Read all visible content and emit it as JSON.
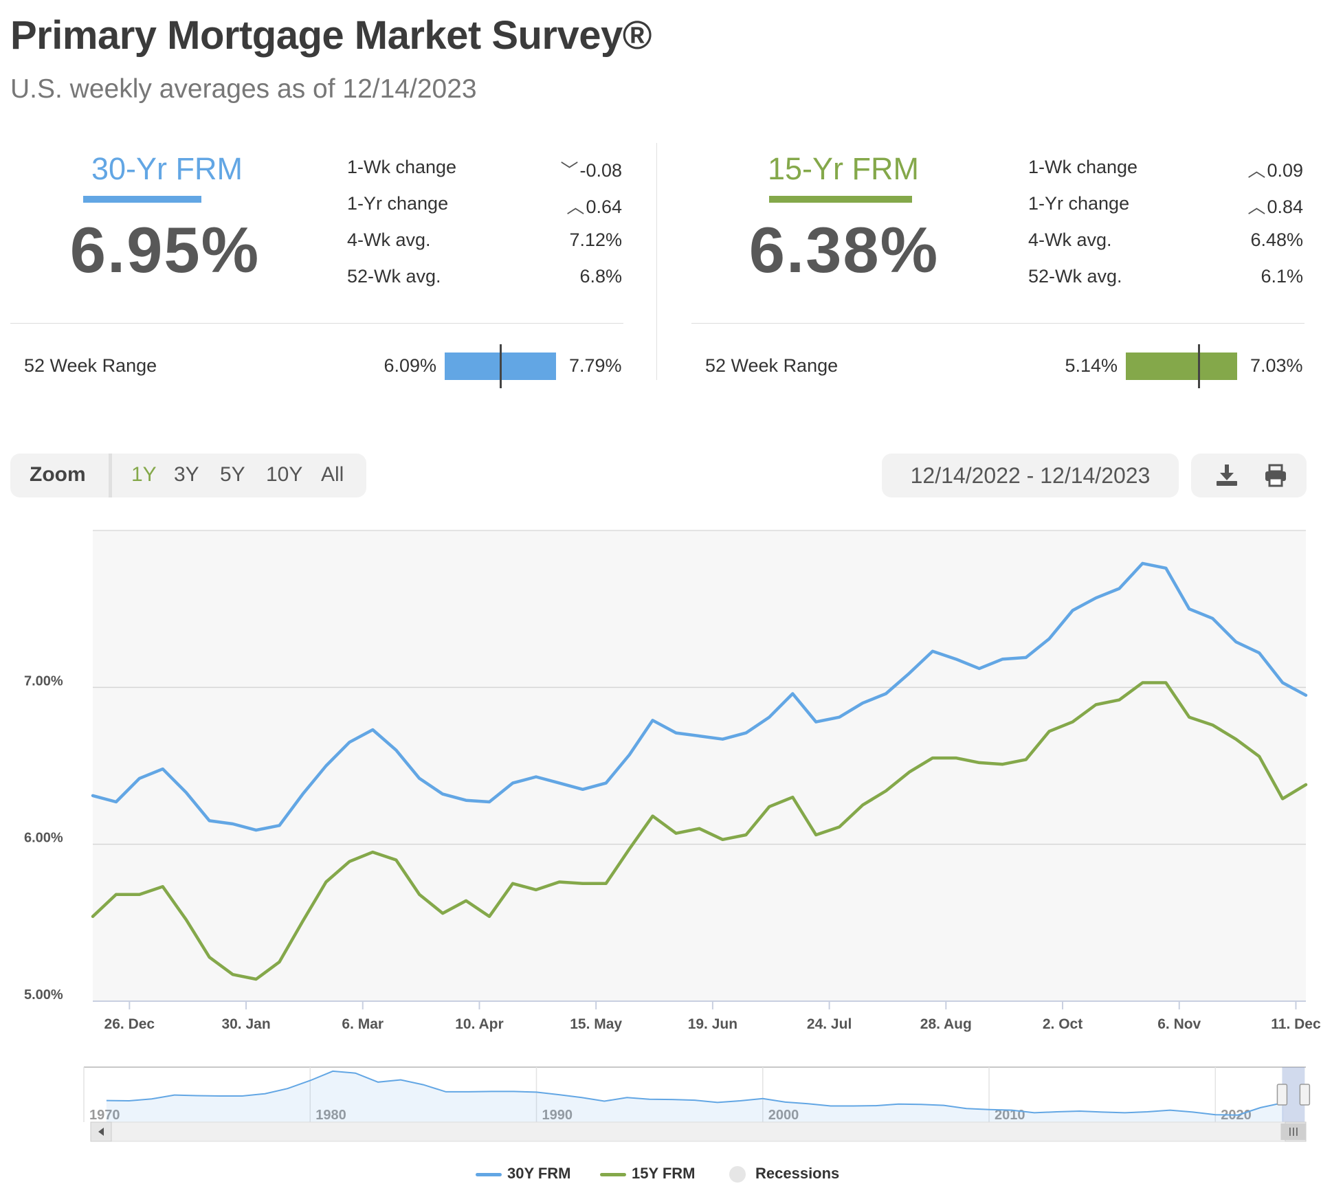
{
  "header": {
    "title": "Primary Mortgage Market Survey®",
    "subtitle": "U.S. weekly averages as of 12/14/2023"
  },
  "colors": {
    "frm30": "#62a6e4",
    "frm15": "#84a84a"
  },
  "panels": [
    {
      "name": "30-Yr FRM",
      "rate": "6.95%",
      "stats": [
        {
          "label": "1-Wk change",
          "arrow": "down",
          "value": "-0.08"
        },
        {
          "label": "1-Yr change",
          "arrow": "up",
          "value": "0.64"
        },
        {
          "label": "4-Wk avg.",
          "arrow": "",
          "value": "7.12%"
        },
        {
          "label": "52-Wk avg.",
          "arrow": "",
          "value": "6.8%"
        }
      ],
      "range_label": "52 Week Range",
      "range_min": "6.09%",
      "range_max": "7.79%",
      "range_min_value": 6.09,
      "range_max_value": 7.79,
      "current_value": 6.95
    },
    {
      "name": "15-Yr FRM",
      "rate": "6.38%",
      "stats": [
        {
          "label": "1-Wk change",
          "arrow": "up",
          "value": "0.09"
        },
        {
          "label": "1-Yr change",
          "arrow": "up",
          "value": "0.84"
        },
        {
          "label": "4-Wk avg.",
          "arrow": "",
          "value": "6.48%"
        },
        {
          "label": "52-Wk avg.",
          "arrow": "",
          "value": "6.1%"
        }
      ],
      "range_label": "52 Week Range",
      "range_min": "5.14%",
      "range_max": "7.03%",
      "range_min_value": 5.14,
      "range_max_value": 7.03,
      "current_value": 6.38
    }
  ],
  "toolbar": {
    "zoom_label": "Zoom",
    "zoom_options": [
      "1Y",
      "3Y",
      "5Y",
      "10Y",
      "All"
    ],
    "active_zoom": "1Y",
    "date_range": "12/14/2022 - 12/14/2023",
    "icons": [
      "download-icon",
      "print-icon"
    ]
  },
  "chart_data": {
    "type": "line",
    "x_start": "2022-12-15",
    "x_end": "2023-12-14",
    "x_tick_labels": [
      "26. Dec",
      "30. Jan",
      "6. Mar",
      "10. Apr",
      "15. May",
      "19. Jun",
      "24. Jul",
      "28. Aug",
      "2. Oct",
      "6. Nov",
      "11. Dec"
    ],
    "x_tick_dates": [
      "2022-12-26",
      "2023-01-30",
      "2023-03-06",
      "2023-04-10",
      "2023-05-15",
      "2023-06-19",
      "2023-07-24",
      "2023-08-28",
      "2023-10-02",
      "2023-11-06",
      "2023-12-11"
    ],
    "y_ticks": [
      "5.00%",
      "6.00%",
      "7.00%"
    ],
    "ylim": [
      5.0,
      8.0
    ],
    "grid": true,
    "series": [
      {
        "name": "30Y FRM",
        "color": "#62a6e4",
        "values": [
          6.31,
          6.27,
          6.42,
          6.48,
          6.33,
          6.15,
          6.13,
          6.09,
          6.12,
          6.32,
          6.5,
          6.65,
          6.73,
          6.6,
          6.42,
          6.32,
          6.28,
          6.27,
          6.39,
          6.43,
          6.39,
          6.35,
          6.39,
          6.57,
          6.79,
          6.71,
          6.69,
          6.67,
          6.71,
          6.81,
          6.96,
          6.78,
          6.81,
          6.9,
          6.96,
          7.09,
          7.23,
          7.18,
          7.12,
          7.18,
          7.19,
          7.31,
          7.49,
          7.57,
          7.63,
          7.79,
          7.76,
          7.5,
          7.44,
          7.29,
          7.22,
          7.03,
          6.95
        ]
      },
      {
        "name": "15Y FRM",
        "color": "#84a84a",
        "values": [
          5.54,
          5.68,
          5.68,
          5.73,
          5.52,
          5.28,
          5.17,
          5.14,
          5.25,
          5.51,
          5.76,
          5.89,
          5.95,
          5.9,
          5.68,
          5.56,
          5.64,
          5.54,
          5.75,
          5.71,
          5.76,
          5.75,
          5.75,
          5.97,
          6.18,
          6.07,
          6.1,
          6.03,
          6.06,
          6.24,
          6.3,
          6.06,
          6.11,
          6.25,
          6.34,
          6.46,
          6.55,
          6.55,
          6.52,
          6.51,
          6.54,
          6.72,
          6.78,
          6.89,
          6.92,
          7.03,
          7.03,
          6.81,
          6.76,
          6.67,
          6.56,
          6.29,
          6.38
        ]
      }
    ],
    "navigator": {
      "x_labels": [
        "1970",
        "1980",
        "1990",
        "2000",
        "2010",
        "2020"
      ],
      "series_30y_yearly": [
        {
          "year": 1971,
          "value": 7.5
        },
        {
          "year": 1972,
          "value": 7.4
        },
        {
          "year": 1973,
          "value": 8.0
        },
        {
          "year": 1974,
          "value": 9.2
        },
        {
          "year": 1975,
          "value": 9.0
        },
        {
          "year": 1976,
          "value": 8.9
        },
        {
          "year": 1977,
          "value": 8.9
        },
        {
          "year": 1978,
          "value": 9.6
        },
        {
          "year": 1979,
          "value": 11.2
        },
        {
          "year": 1980,
          "value": 13.7
        },
        {
          "year": 1981,
          "value": 16.6
        },
        {
          "year": 1982,
          "value": 16.0
        },
        {
          "year": 1983,
          "value": 13.2
        },
        {
          "year": 1984,
          "value": 13.9
        },
        {
          "year": 1985,
          "value": 12.4
        },
        {
          "year": 1986,
          "value": 10.2
        },
        {
          "year": 1987,
          "value": 10.2
        },
        {
          "year": 1988,
          "value": 10.3
        },
        {
          "year": 1989,
          "value": 10.3
        },
        {
          "year": 1990,
          "value": 10.1
        },
        {
          "year": 1991,
          "value": 9.3
        },
        {
          "year": 1992,
          "value": 8.4
        },
        {
          "year": 1993,
          "value": 7.3
        },
        {
          "year": 1994,
          "value": 8.4
        },
        {
          "year": 1995,
          "value": 7.9
        },
        {
          "year": 1996,
          "value": 7.8
        },
        {
          "year": 1997,
          "value": 7.6
        },
        {
          "year": 1998,
          "value": 6.9
        },
        {
          "year": 1999,
          "value": 7.4
        },
        {
          "year": 2000,
          "value": 8.1
        },
        {
          "year": 2001,
          "value": 7.0
        },
        {
          "year": 2002,
          "value": 6.5
        },
        {
          "year": 2003,
          "value": 5.8
        },
        {
          "year": 2004,
          "value": 5.8
        },
        {
          "year": 2005,
          "value": 5.9
        },
        {
          "year": 2006,
          "value": 6.4
        },
        {
          "year": 2007,
          "value": 6.3
        },
        {
          "year": 2008,
          "value": 6.0
        },
        {
          "year": 2009,
          "value": 5.0
        },
        {
          "year": 2010,
          "value": 4.7
        },
        {
          "year": 2011,
          "value": 4.5
        },
        {
          "year": 2012,
          "value": 3.7
        },
        {
          "year": 2013,
          "value": 4.0
        },
        {
          "year": 2014,
          "value": 4.2
        },
        {
          "year": 2015,
          "value": 3.9
        },
        {
          "year": 2016,
          "value": 3.7
        },
        {
          "year": 2017,
          "value": 4.0
        },
        {
          "year": 2018,
          "value": 4.5
        },
        {
          "year": 2019,
          "value": 3.9
        },
        {
          "year": 2020,
          "value": 3.1
        },
        {
          "year": 2021,
          "value": 3.0
        },
        {
          "year": 2022,
          "value": 5.3
        },
        {
          "year": 2023,
          "value": 6.8
        }
      ]
    }
  },
  "legend": [
    {
      "label": "30Y FRM",
      "kind": "line",
      "color": "#62a6e4"
    },
    {
      "label": "15Y FRM",
      "kind": "line",
      "color": "#84a84a"
    },
    {
      "label": "Recessions",
      "kind": "dot",
      "color": "#e6e6e6"
    }
  ]
}
